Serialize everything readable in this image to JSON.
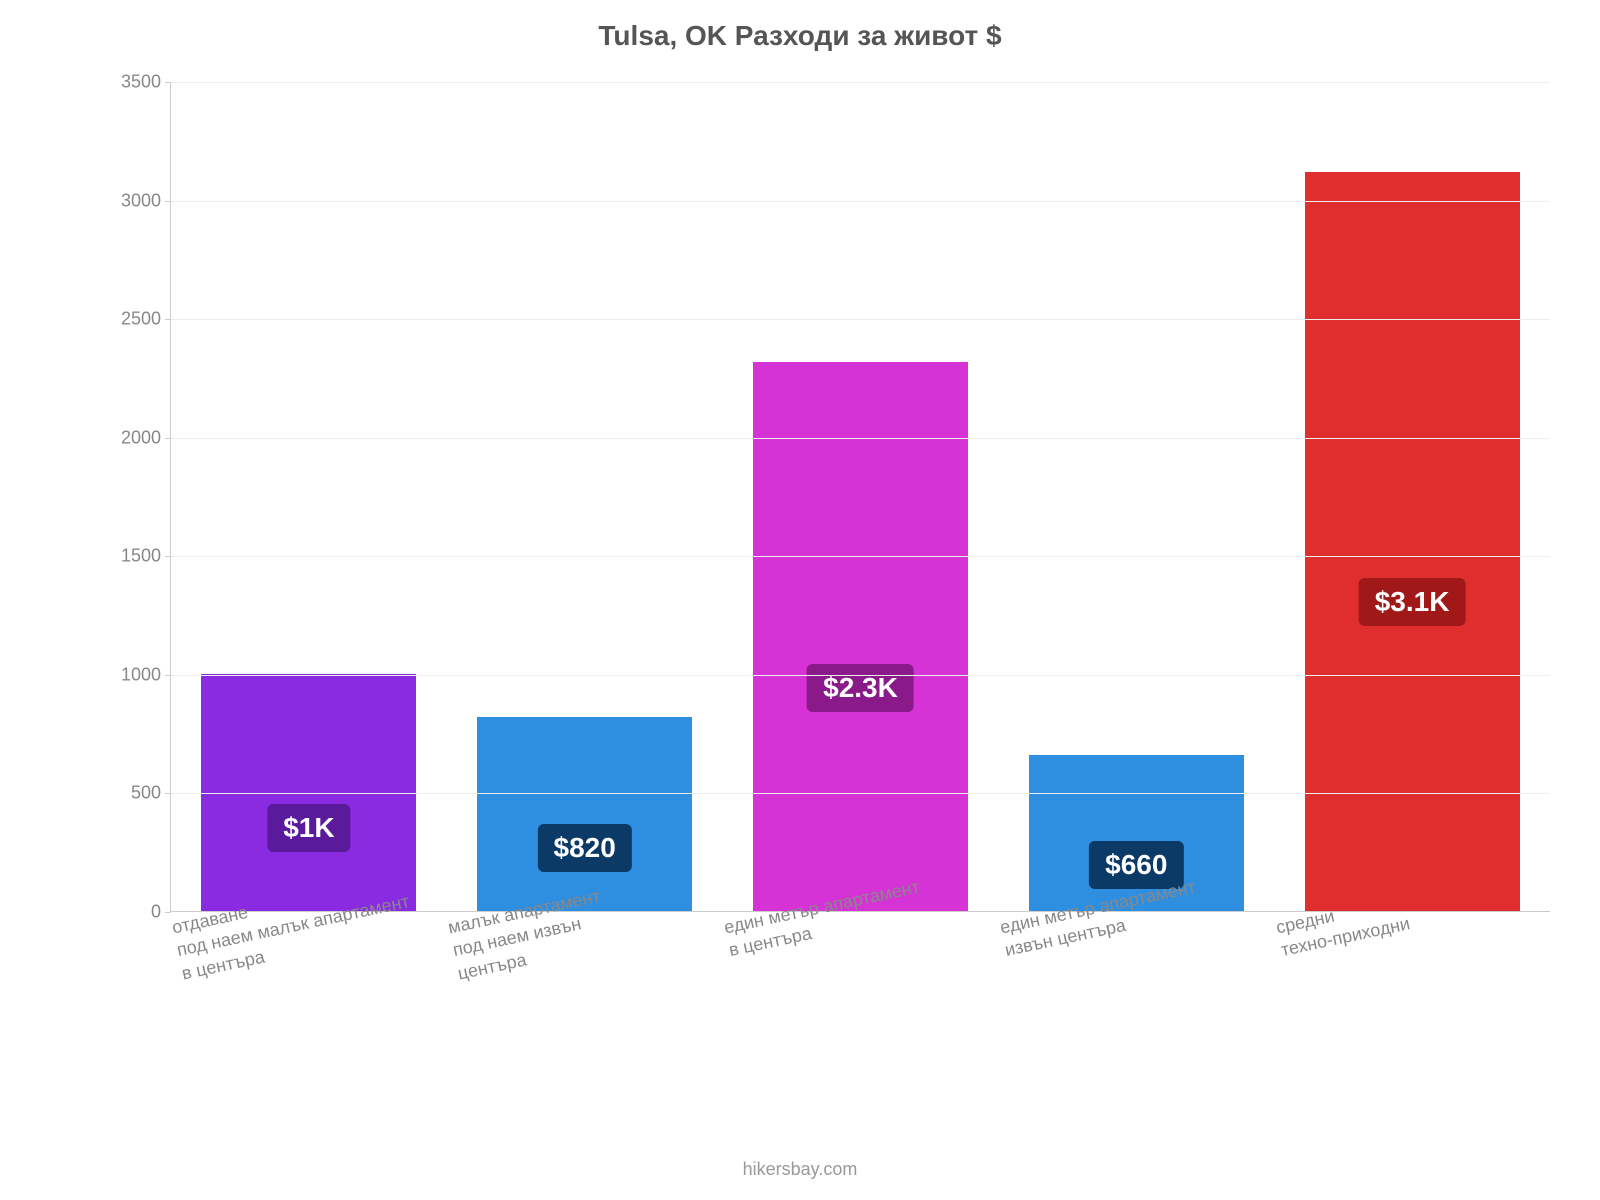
{
  "chart": {
    "type": "bar",
    "title": "Tulsa, OK Разходи за живот $",
    "title_fontsize": 28,
    "title_color": "#555555",
    "background_color": "#ffffff",
    "grid_color": "#eeeeee",
    "axis_color": "#cccccc",
    "tick_label_color": "#888888",
    "tick_label_fontsize": 18,
    "ylim": [
      0,
      3500
    ],
    "ytick_step": 500,
    "yticks": [
      0,
      500,
      1000,
      1500,
      2000,
      2500,
      3000,
      3500
    ],
    "bar_width_pct": 78,
    "categories": [
      "отдаване\nпод наем малък апартамент\nв центъра",
      "малък апартамент\nпод наем извън\nцентъра",
      "един метър апартамент\nв центъра",
      "един метър апартамент\nизвън центъра",
      "средни\nтехно-приходни"
    ],
    "values": [
      1000,
      820,
      2320,
      660,
      3120
    ],
    "value_labels": [
      "$1K",
      "$820",
      "$2.3K",
      "$660",
      "$3.1K"
    ],
    "bar_colors": [
      "#8a2be2",
      "#2e8fe0",
      "#d633d6",
      "#2e8fe0",
      "#e02e2e"
    ],
    "badge_bg_colors": [
      "#5a1a9c",
      "#0b3a66",
      "#8a1a8a",
      "#0b3a66",
      "#a01818"
    ],
    "badge_text_color": "#ffffff",
    "badge_fontsize": 28,
    "credit": "hikersbay.com",
    "credit_color": "#999999",
    "credit_fontsize": 18
  }
}
